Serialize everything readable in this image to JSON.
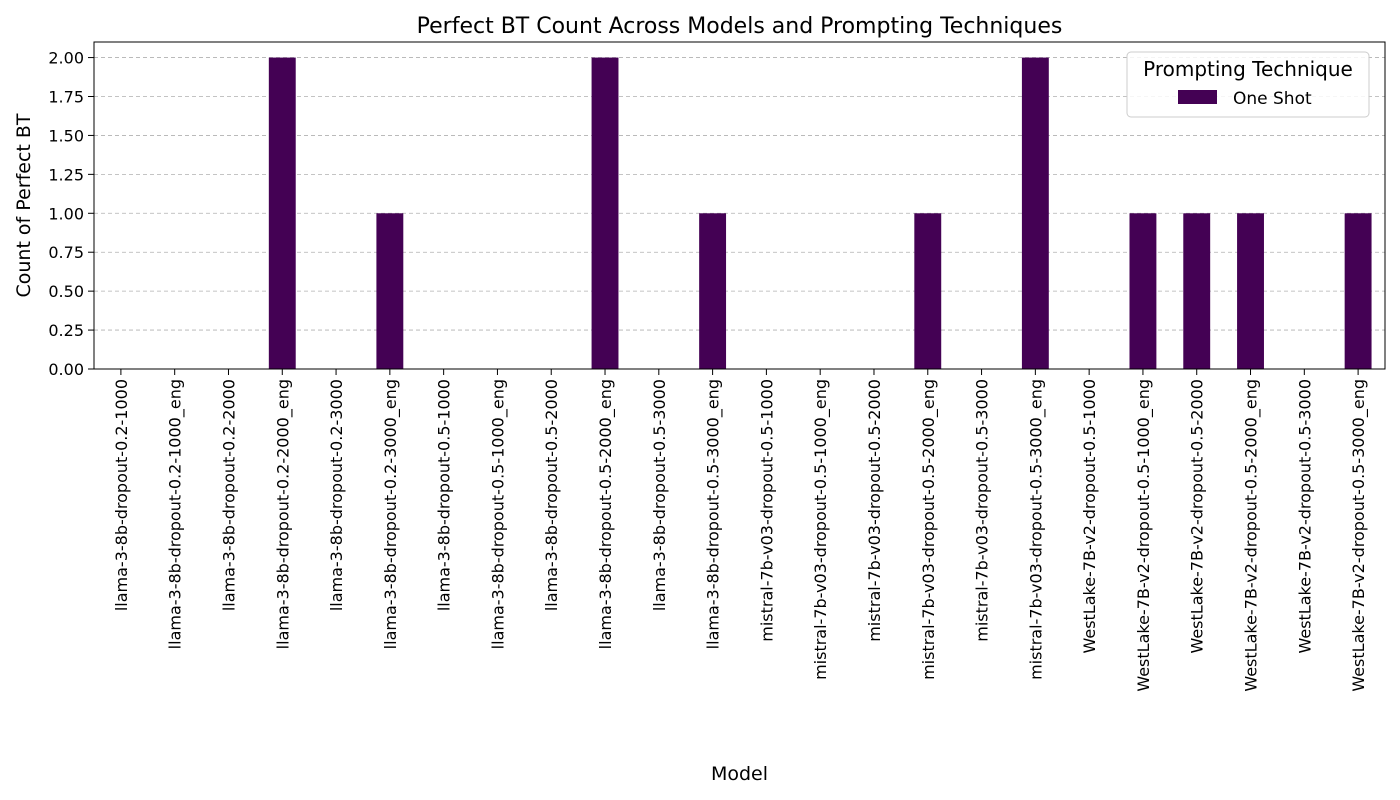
{
  "chart_data": {
    "type": "bar",
    "title": "Perfect BT Count Across Models and Prompting Techniques",
    "xlabel": "Model",
    "ylabel": "Count of Perfect BT",
    "ylim": [
      0,
      2.1
    ],
    "yticks": [
      "0.00",
      "0.25",
      "0.50",
      "0.75",
      "1.00",
      "1.25",
      "1.50",
      "1.75",
      "2.00"
    ],
    "ytick_values": [
      0,
      0.25,
      0.5,
      0.75,
      1.0,
      1.25,
      1.5,
      1.75,
      2.0
    ],
    "grid": "y-dashed",
    "legend": {
      "title": "Prompting Technique",
      "placement": "top-right"
    },
    "categories": [
      "llama-3-8b-dropout-0.2-1000",
      "llama-3-8b-dropout-0.2-1000_eng",
      "llama-3-8b-dropout-0.2-2000",
      "llama-3-8b-dropout-0.2-2000_eng",
      "llama-3-8b-dropout-0.2-3000",
      "llama-3-8b-dropout-0.2-3000_eng",
      "llama-3-8b-dropout-0.5-1000",
      "llama-3-8b-dropout-0.5-1000_eng",
      "llama-3-8b-dropout-0.5-2000",
      "llama-3-8b-dropout-0.5-2000_eng",
      "llama-3-8b-dropout-0.5-3000",
      "llama-3-8b-dropout-0.5-3000_eng",
      "mistral-7b-v03-dropout-0.5-1000",
      "mistral-7b-v03-dropout-0.5-1000_eng",
      "mistral-7b-v03-dropout-0.5-2000",
      "mistral-7b-v03-dropout-0.5-2000_eng",
      "mistral-7b-v03-dropout-0.5-3000",
      "mistral-7b-v03-dropout-0.5-3000_eng",
      "WestLake-7B-v2-dropout-0.5-1000",
      "WestLake-7B-v2-dropout-0.5-1000_eng",
      "WestLake-7B-v2-dropout-0.5-2000",
      "WestLake-7B-v2-dropout-0.5-2000_eng",
      "WestLake-7B-v2-dropout-0.5-3000",
      "WestLake-7B-v2-dropout-0.5-3000_eng"
    ],
    "series": [
      {
        "name": "One Shot",
        "color": "#440154",
        "values": [
          0,
          0,
          0,
          2,
          0,
          1,
          0,
          0,
          0,
          2,
          0,
          1,
          0,
          0,
          0,
          1,
          0,
          2,
          0,
          1,
          1,
          1,
          0,
          1
        ]
      }
    ]
  }
}
